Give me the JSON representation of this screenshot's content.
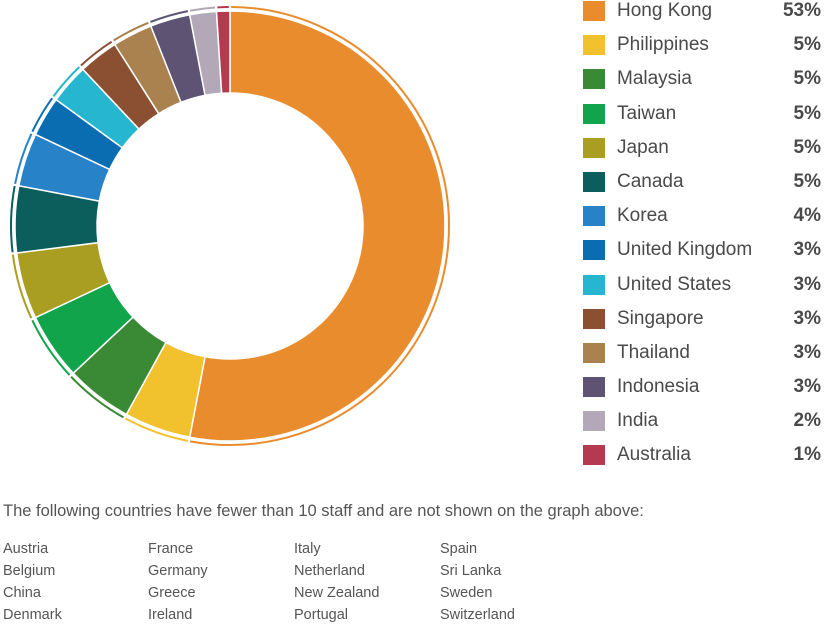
{
  "chart_data": {
    "type": "pie",
    "variant": "donut",
    "categories": [
      "Hong Kong",
      "Philippines",
      "Malaysia",
      "Taiwan",
      "Japan",
      "Canada",
      "Korea",
      "United Kingdom",
      "United States",
      "Singapore",
      "Thailand",
      "Indonesia",
      "India",
      "Australia"
    ],
    "values": [
      53,
      5,
      5,
      5,
      5,
      5,
      4,
      3,
      3,
      3,
      3,
      3,
      2,
      1
    ],
    "value_labels": [
      "53%",
      "5%",
      "5%",
      "5%",
      "5%",
      "5%",
      "4%",
      "3%",
      "3%",
      "3%",
      "3%",
      "3%",
      "2%",
      "1%"
    ],
    "colors": [
      "#E98C2D",
      "#F2C12E",
      "#3A8A35",
      "#11A44B",
      "#A99E21",
      "#0B5E5C",
      "#2782C8",
      "#0B6DB1",
      "#26B6CF",
      "#8B5032",
      "#A9824F",
      "#5E5372",
      "#B3A8B8",
      "#B53A50"
    ],
    "legend_position": "right"
  },
  "footnote": "The following countries have fewer than 10 staff and are not shown on the graph above:",
  "other_countries": [
    "Austria",
    "Belgium",
    "China",
    "Denmark",
    "France",
    "Germany",
    "Greece",
    "Ireland",
    "Italy",
    "Netherland",
    "New Zealand",
    "Portugal",
    "Spain",
    "Sri Lanka",
    "Sweden",
    "Switzerland"
  ]
}
